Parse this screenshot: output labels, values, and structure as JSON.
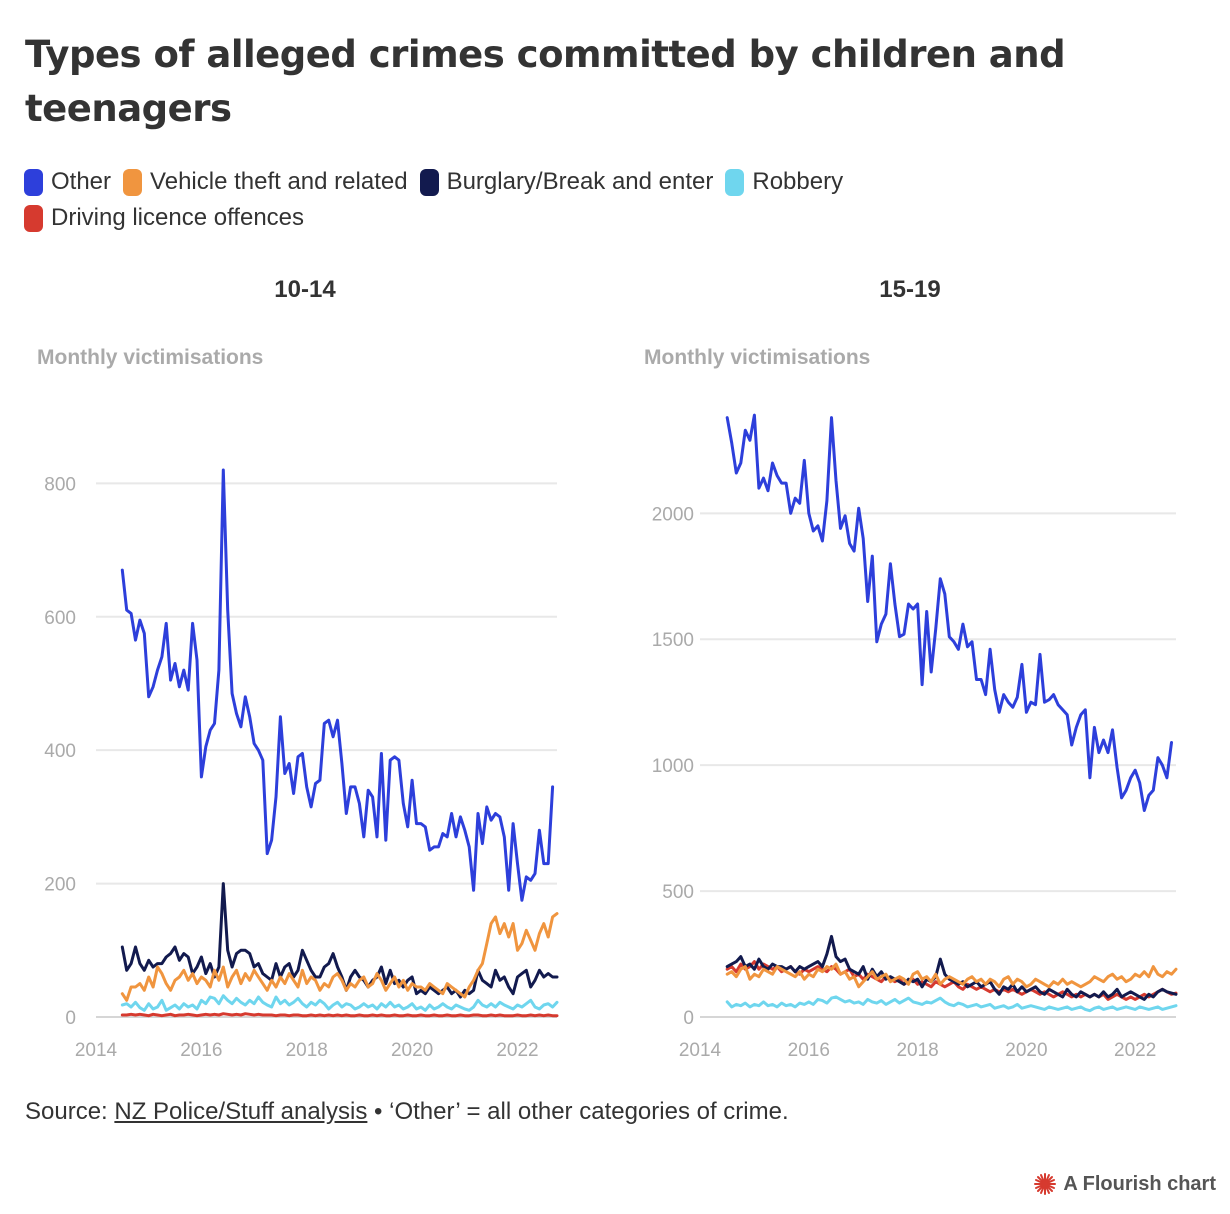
{
  "title": "Types of alleged crimes committed by children and teenagers",
  "legend": [
    {
      "label": "Other",
      "color": "#2d3fdb"
    },
    {
      "label": "Vehicle theft and related",
      "color": "#f0953f"
    },
    {
      "label": "Burglary/Break and enter",
      "color": "#121a4e"
    },
    {
      "label": "Robbery",
      "color": "#6fd6ee"
    },
    {
      "label": "Driving licence offences",
      "color": "#d63a2f"
    }
  ],
  "source": {
    "prefix": "Source: ",
    "link_text": "NZ Police/Stuff analysis",
    "suffix": " • ‘Other’ = all other categories of crime."
  },
  "credit": "A Flourish chart",
  "chart_data": [
    {
      "type": "line",
      "title": "10-14",
      "ylabel": "Monthly victimisations",
      "xlim": [
        2014,
        2022.75
      ],
      "ylim": [
        0,
        850
      ],
      "xticks": [
        2014,
        2016,
        2018,
        2020,
        2022
      ],
      "yticks": [
        0,
        200,
        400,
        600,
        800
      ],
      "x_start": 2014.5,
      "x_step_months": 1,
      "series": [
        {
          "name": "Other",
          "color": "#2d3fdb",
          "values": [
            670,
            610,
            605,
            565,
            595,
            575,
            480,
            495,
            520,
            540,
            590,
            505,
            530,
            495,
            520,
            490,
            590,
            535,
            360,
            405,
            430,
            440,
            520,
            820,
            610,
            485,
            455,
            435,
            480,
            450,
            410,
            400,
            385,
            245,
            265,
            330,
            450,
            365,
            380,
            335,
            390,
            395,
            345,
            315,
            350,
            355,
            440,
            445,
            420,
            445,
            380,
            305,
            345,
            345,
            320,
            270,
            340,
            330,
            270,
            395,
            265,
            385,
            390,
            385,
            320,
            285,
            355,
            290,
            290,
            285,
            250,
            255,
            255,
            275,
            270,
            305,
            270,
            300,
            280,
            255,
            190,
            305,
            260,
            315,
            295,
            305,
            300,
            270,
            190,
            290,
            230,
            175,
            210,
            205,
            215,
            280,
            230,
            230,
            345
          ]
        },
        {
          "name": "Vehicle theft and related",
          "color": "#f0953f",
          "values": [
            35,
            25,
            45,
            45,
            50,
            40,
            60,
            45,
            75,
            65,
            50,
            40,
            55,
            60,
            70,
            55,
            65,
            50,
            60,
            55,
            45,
            70,
            55,
            75,
            45,
            60,
            70,
            50,
            65,
            55,
            70,
            60,
            50,
            40,
            55,
            45,
            60,
            50,
            65,
            55,
            45,
            70,
            50,
            60,
            55,
            40,
            50,
            45,
            60,
            65,
            55,
            40,
            50,
            45,
            55,
            60,
            45,
            50,
            65,
            55,
            40,
            50,
            60,
            45,
            55,
            40,
            50,
            45,
            45,
            40,
            50,
            45,
            40,
            35,
            50,
            45,
            40,
            35,
            30,
            45,
            55,
            70,
            80,
            110,
            140,
            150,
            125,
            140,
            120,
            140,
            100,
            110,
            130,
            115,
            100,
            125,
            140,
            120,
            150,
            155
          ]
        },
        {
          "name": "Burglary/Break and enter",
          "color": "#121a4e",
          "values": [
            105,
            70,
            80,
            105,
            80,
            70,
            85,
            75,
            80,
            80,
            90,
            95,
            105,
            85,
            95,
            90,
            65,
            75,
            90,
            65,
            80,
            60,
            75,
            200,
            100,
            75,
            95,
            100,
            100,
            95,
            75,
            80,
            65,
            60,
            55,
            80,
            60,
            75,
            80,
            60,
            70,
            100,
            85,
            70,
            60,
            60,
            75,
            80,
            95,
            75,
            60,
            40,
            60,
            70,
            60,
            55,
            45,
            55,
            60,
            75,
            50,
            70,
            50,
            55,
            45,
            55,
            60,
            35,
            40,
            35,
            45,
            40,
            35,
            40,
            45,
            35,
            40,
            30,
            40,
            35,
            40,
            70,
            55,
            50,
            45,
            70,
            55,
            60,
            45,
            35,
            60,
            65,
            70,
            45,
            55,
            70,
            60,
            65,
            60,
            60
          ]
        },
        {
          "name": "Robbery",
          "color": "#6fd6ee",
          "values": [
            18,
            20,
            15,
            22,
            14,
            10,
            20,
            12,
            15,
            25,
            10,
            14,
            18,
            12,
            20,
            15,
            18,
            12,
            25,
            20,
            30,
            28,
            20,
            32,
            25,
            20,
            28,
            22,
            18,
            25,
            20,
            30,
            22,
            18,
            15,
            30,
            20,
            25,
            18,
            22,
            28,
            20,
            15,
            22,
            18,
            25,
            20,
            12,
            18,
            22,
            15,
            20,
            18,
            12,
            15,
            20,
            15,
            18,
            12,
            20,
            15,
            22,
            15,
            18,
            12,
            15,
            20,
            12,
            15,
            10,
            18,
            12,
            15,
            20,
            15,
            12,
            18,
            15,
            12,
            10,
            15,
            25,
            18,
            15,
            20,
            15,
            22,
            18,
            15,
            12,
            18,
            15,
            20,
            25,
            15,
            12,
            18,
            20,
            15,
            22
          ]
        },
        {
          "name": "Driving licence offences",
          "color": "#d63a2f",
          "values": [
            3,
            3,
            4,
            3,
            4,
            3,
            2,
            4,
            3,
            2,
            3,
            4,
            2,
            3,
            3,
            4,
            3,
            2,
            3,
            4,
            3,
            4,
            3,
            5,
            4,
            3,
            4,
            3,
            5,
            4,
            3,
            4,
            3,
            3,
            3,
            2,
            3,
            3,
            2,
            3,
            3,
            2,
            2,
            3,
            2,
            3,
            2,
            3,
            2,
            3,
            2,
            3,
            2,
            2,
            3,
            2,
            2,
            3,
            2,
            3,
            2,
            2,
            3,
            2,
            2,
            3,
            2,
            2,
            3,
            2,
            2,
            3,
            2,
            2,
            3,
            2,
            2,
            3,
            2,
            2,
            3,
            3,
            2,
            2,
            3,
            2,
            3,
            2,
            2,
            2,
            3,
            2,
            2,
            3,
            2,
            3,
            2,
            3,
            2,
            2
          ]
        }
      ]
    },
    {
      "type": "line",
      "title": "15-19",
      "ylabel": "Monthly victimisations",
      "xlim": [
        2014,
        2022.75
      ],
      "ylim": [
        0,
        2450
      ],
      "xticks": [
        2014,
        2016,
        2018,
        2020,
        2022
      ],
      "yticks": [
        0,
        500,
        1000,
        1500,
        2000
      ],
      "x_start": 2014.5,
      "x_step_months": 1,
      "series": [
        {
          "name": "Other",
          "color": "#2d3fdb",
          "values": [
            2380,
            2280,
            2160,
            2200,
            2330,
            2290,
            2390,
            2100,
            2140,
            2090,
            2200,
            2150,
            2120,
            2120,
            2000,
            2060,
            2040,
            2210,
            2000,
            1930,
            1950,
            1890,
            2050,
            2380,
            2130,
            1940,
            1990,
            1880,
            1850,
            2020,
            1900,
            1650,
            1830,
            1490,
            1560,
            1600,
            1800,
            1640,
            1510,
            1520,
            1640,
            1620,
            1640,
            1320,
            1610,
            1370,
            1540,
            1740,
            1680,
            1510,
            1490,
            1460,
            1560,
            1470,
            1490,
            1340,
            1340,
            1280,
            1460,
            1300,
            1210,
            1280,
            1250,
            1230,
            1270,
            1400,
            1210,
            1250,
            1240,
            1440,
            1250,
            1260,
            1280,
            1240,
            1220,
            1200,
            1080,
            1150,
            1200,
            1220,
            950,
            1150,
            1050,
            1100,
            1050,
            1140,
            990,
            870,
            900,
            950,
            980,
            930,
            820,
            880,
            900,
            1030,
            1000,
            950,
            1090
          ]
        },
        {
          "name": "Vehicle theft and related",
          "color": "#f0953f",
          "values": [
            170,
            180,
            160,
            190,
            200,
            150,
            170,
            160,
            190,
            180,
            170,
            200,
            190,
            180,
            170,
            160,
            180,
            150,
            170,
            160,
            190,
            180,
            200,
            190,
            210,
            170,
            180,
            150,
            160,
            120,
            140,
            160,
            180,
            150,
            160,
            170,
            140,
            150,
            160,
            150,
            130,
            170,
            180,
            150,
            160,
            140,
            170,
            130,
            150,
            160,
            150,
            140,
            130,
            150,
            160,
            140,
            150,
            130,
            150,
            140,
            120,
            150,
            160,
            130,
            150,
            140,
            120,
            130,
            150,
            140,
            130,
            120,
            140,
            130,
            150,
            130,
            140,
            130,
            120,
            130,
            140,
            160,
            150,
            140,
            160,
            170,
            150,
            160,
            140,
            150,
            170,
            160,
            180,
            160,
            200,
            170,
            160,
            180,
            170,
            190
          ]
        },
        {
          "name": "Burglary/Break and enter",
          "color": "#121a4e",
          "values": [
            200,
            210,
            220,
            240,
            200,
            210,
            190,
            230,
            200,
            190,
            210,
            200,
            200,
            190,
            200,
            180,
            200,
            190,
            200,
            210,
            220,
            200,
            250,
            320,
            240,
            220,
            230,
            190,
            180,
            170,
            200,
            150,
            190,
            160,
            180,
            150,
            160,
            150,
            140,
            130,
            150,
            140,
            150,
            120,
            150,
            140,
            160,
            230,
            170,
            150,
            140,
            130,
            140,
            120,
            130,
            140,
            120,
            130,
            140,
            110,
            90,
            120,
            110,
            130,
            100,
            120,
            100,
            110,
            120,
            100,
            90,
            110,
            100,
            90,
            80,
            110,
            90,
            80,
            100,
            90,
            80,
            90,
            80,
            100,
            80,
            90,
            110,
            80,
            90,
            100,
            90,
            80,
            70,
            90,
            80,
            100,
            110,
            100,
            95,
            90
          ]
        },
        {
          "name": "Robbery",
          "color": "#6fd6ee",
          "values": [
            60,
            40,
            50,
            45,
            55,
            40,
            50,
            45,
            60,
            45,
            50,
            40,
            55,
            45,
            50,
            40,
            55,
            50,
            60,
            50,
            70,
            65,
            55,
            75,
            80,
            70,
            60,
            65,
            55,
            60,
            50,
            70,
            60,
            55,
            65,
            50,
            60,
            70,
            55,
            65,
            75,
            60,
            55,
            50,
            60,
            55,
            65,
            75,
            60,
            50,
            45,
            55,
            50,
            40,
            45,
            50,
            40,
            45,
            50,
            35,
            40,
            45,
            35,
            40,
            50,
            35,
            40,
            45,
            40,
            35,
            30,
            40,
            35,
            30,
            35,
            40,
            30,
            35,
            40,
            30,
            25,
            35,
            40,
            30,
            35,
            40,
            30,
            35,
            40,
            35,
            30,
            40,
            35,
            30,
            35,
            40,
            30,
            35,
            40,
            45
          ]
        },
        {
          "name": "Driving licence offences",
          "color": "#d63a2f",
          "values": [
            190,
            200,
            180,
            210,
            190,
            200,
            220,
            190,
            210,
            200,
            190,
            200,
            180,
            190,
            200,
            180,
            170,
            190,
            180,
            190,
            200,
            190,
            180,
            200,
            190,
            170,
            180,
            190,
            160,
            170,
            150,
            170,
            160,
            150,
            140,
            160,
            150,
            140,
            150,
            130,
            140,
            150,
            130,
            140,
            130,
            120,
            140,
            130,
            120,
            130,
            140,
            120,
            110,
            130,
            120,
            110,
            120,
            110,
            100,
            110,
            100,
            110,
            100,
            110,
            100,
            90,
            100,
            110,
            100,
            90,
            100,
            90,
            80,
            90,
            100,
            90,
            80,
            90,
            80,
            90,
            80,
            90,
            80,
            90,
            70,
            80,
            90,
            80,
            70,
            80,
            70,
            80,
            90,
            80,
            90,
            100,
            110,
            100,
            90,
            95
          ]
        }
      ]
    }
  ]
}
